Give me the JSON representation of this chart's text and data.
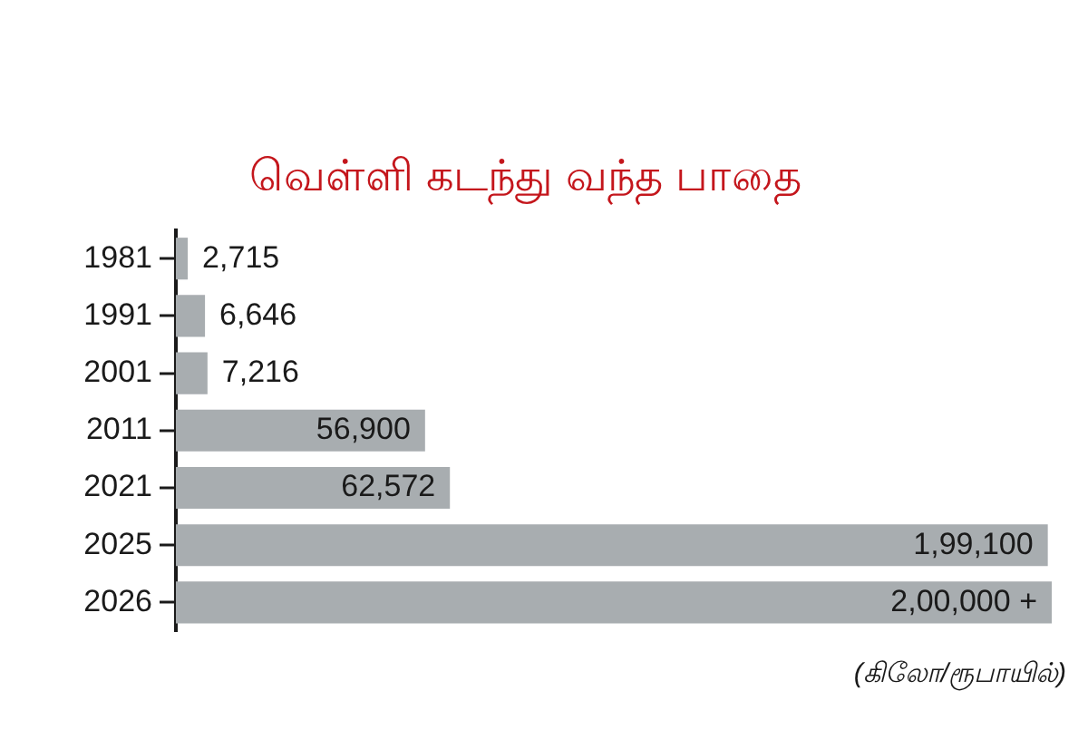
{
  "chart_data": {
    "type": "bar",
    "orientation": "horizontal",
    "title": "வெள்ளி கடந்து வந்த பாதை",
    "categories": [
      "1981",
      "1991",
      "2001",
      "2011",
      "2021",
      "2025",
      "2026"
    ],
    "values": [
      2715,
      6646,
      7216,
      56900,
      62572,
      199100,
      200000
    ],
    "value_labels": [
      "2,715",
      "6,646",
      "7,216",
      "56,900",
      "62,572",
      "1,99,100",
      "2,00,000 +"
    ],
    "color": "#a8adb0",
    "tick_labels": "y",
    "annotations": [
      "(கிலோ/ரூபாயில்)"
    ]
  }
}
